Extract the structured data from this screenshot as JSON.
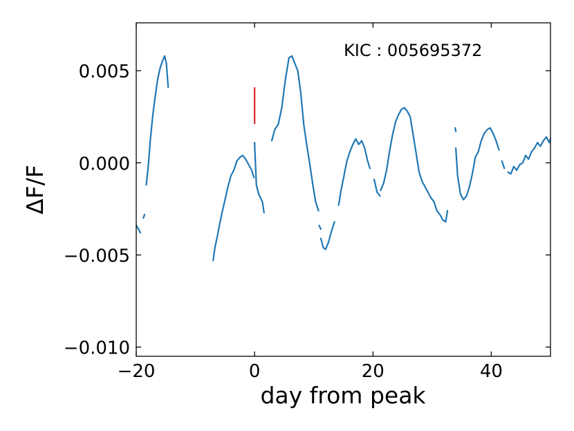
{
  "chart_data": {
    "type": "line",
    "title": "",
    "xlabel": "day from peak",
    "ylabel": "ΔF/F",
    "xlim": [
      -20,
      50
    ],
    "ylim": [
      -0.0105,
      0.0076
    ],
    "grid": false,
    "x_ticks": [
      {
        "value": -20,
        "label": "−20"
      },
      {
        "value": 0,
        "label": "0"
      },
      {
        "value": 20,
        "label": "20"
      },
      {
        "value": 40,
        "label": "40"
      }
    ],
    "y_ticks": [
      {
        "value": 0.005,
        "label": "0.005"
      },
      {
        "value": 0.0,
        "label": "0.000"
      },
      {
        "value": -0.005,
        "label": "−0.005"
      },
      {
        "value": -0.01,
        "label": "−0.010"
      }
    ],
    "annotation": "KIC : 005695372",
    "peak_marker": {
      "x": 0,
      "y_range": [
        0.0021,
        0.0041
      ],
      "color": "#d62728"
    },
    "series": [
      {
        "color": "#1f77b4",
        "segments": [
          {
            "x": [
              -20.0,
              -19.6,
              -19.3
            ],
            "y": [
              -0.0034,
              -0.0036,
              -0.0038
            ]
          },
          {
            "x": [
              -18.8,
              -18.6
            ],
            "y": [
              -0.003,
              -0.0028
            ]
          },
          {
            "x": [
              -18.3,
              -18.0,
              -17.6,
              -17.2,
              -16.8,
              -16.4,
              -16.0,
              -15.6,
              -15.2,
              -14.9,
              -14.6
            ],
            "y": [
              -0.0012,
              -0.0003,
              0.0013,
              0.0026,
              0.0036,
              0.0045,
              0.0051,
              0.0055,
              0.0058,
              0.0054,
              0.0041
            ]
          },
          {
            "x": [
              -7.0,
              -6.7,
              -6.3,
              -5.9,
              -5.5,
              -5.0,
              -4.5,
              -4.0,
              -3.5,
              -3.0,
              -2.5,
              -2.0,
              -1.5,
              -1.0,
              -0.5,
              -0.1
            ],
            "y": [
              -0.0053,
              -0.0046,
              -0.004,
              -0.0033,
              -0.0027,
              -0.002,
              -0.0013,
              -0.0007,
              -0.0004,
              0.0001,
              0.0003,
              0.0004,
              0.0002,
              -0.0001,
              -0.0004,
              -0.0008
            ]
          },
          {
            "x": [
              0.0,
              0.3,
              0.7,
              1.0,
              1.3,
              1.6
            ],
            "y": [
              0.0011,
              -0.0012,
              -0.0017,
              -0.0019,
              -0.0021,
              -0.0027
            ]
          },
          {
            "x": [
              2.9,
              3.4,
              4.0,
              4.6,
              5.2,
              5.8,
              6.3,
              6.8,
              7.3,
              7.8,
              8.3,
              8.8,
              9.3,
              9.8,
              10.3,
              10.8
            ],
            "y": [
              0.0012,
              0.0018,
              0.0021,
              0.003,
              0.0045,
              0.0057,
              0.0058,
              0.0054,
              0.005,
              0.0038,
              0.0021,
              0.001,
              0.0,
              -0.0011,
              -0.0021,
              -0.0026
            ]
          },
          {
            "x": [
              10.9,
              11.2
            ],
            "y": [
              -0.0034,
              -0.0036
            ]
          },
          {
            "x": [
              11.2,
              11.6,
              12.0,
              12.5,
              13.0,
              13.5
            ],
            "y": [
              -0.0041,
              -0.0046,
              -0.0047,
              -0.0043,
              -0.0037,
              -0.0032
            ]
          },
          {
            "x": [
              14.2,
              14.6,
              15.1,
              15.6,
              16.1,
              16.6,
              17.1,
              17.6,
              18.1,
              18.6,
              19.1,
              19.5
            ],
            "y": [
              -0.0023,
              -0.0015,
              -0.0007,
              0.0001,
              0.0006,
              0.001,
              0.0013,
              0.001,
              0.0012,
              0.0008,
              0.0001,
              -0.0003
            ]
          },
          {
            "x": [
              20.2,
              20.7,
              21.2
            ],
            "y": [
              -0.0009,
              -0.0016,
              -0.0018
            ]
          },
          {
            "x": [
              21.3,
              21.8,
              22.3,
              22.8,
              23.3,
              23.8,
              24.3,
              24.8,
              25.3,
              25.8,
              26.3,
              26.8,
              27.3,
              27.8,
              28.3,
              28.8,
              29.3,
              29.8,
              30.3,
              30.8,
              31.3,
              31.8,
              32.3,
              32.6
            ],
            "y": [
              -0.0015,
              -0.0011,
              -0.0004,
              0.0006,
              0.0015,
              0.0022,
              0.0026,
              0.0029,
              0.003,
              0.0028,
              0.0025,
              0.0015,
              0.0005,
              -0.0005,
              -0.001,
              -0.0013,
              -0.0016,
              -0.0019,
              -0.0021,
              -0.0026,
              -0.0028,
              -0.0031,
              -0.0032,
              -0.0026
            ]
          },
          {
            "x": [
              33.9,
              34.0
            ],
            "y": [
              0.0019,
              0.0017
            ]
          },
          {
            "x": [
              34.0,
              34.3,
              34.8,
              35.3,
              35.8,
              36.3,
              36.8,
              37.3,
              37.8,
              38.3,
              38.8,
              39.3,
              39.8,
              40.3,
              40.8,
              41.3
            ],
            "y": [
              0.0008,
              -0.0007,
              -0.0017,
              -0.002,
              -0.0018,
              -0.0013,
              -0.0006,
              0.0003,
              0.0006,
              0.0012,
              0.0016,
              0.0018,
              0.0019,
              0.0016,
              0.0012,
              0.0007
            ]
          },
          {
            "x": [
              41.8,
              42.2
            ],
            "y": [
              0.0001,
              -0.0003
            ]
          },
          {
            "x": [
              42.8,
              43.3,
              43.8,
              44.3,
              44.8,
              45.3,
              45.8,
              46.3,
              46.8,
              47.3,
              47.8,
              48.3,
              48.8,
              49.3,
              49.8,
              50.0
            ],
            "y": [
              -0.0005,
              -0.0006,
              -0.0002,
              -0.0004,
              -0.0001,
              0.0,
              0.0004,
              0.0002,
              0.0006,
              0.0008,
              0.0011,
              0.0009,
              0.0012,
              0.0014,
              0.0011,
              0.0013
            ]
          }
        ]
      }
    ]
  }
}
